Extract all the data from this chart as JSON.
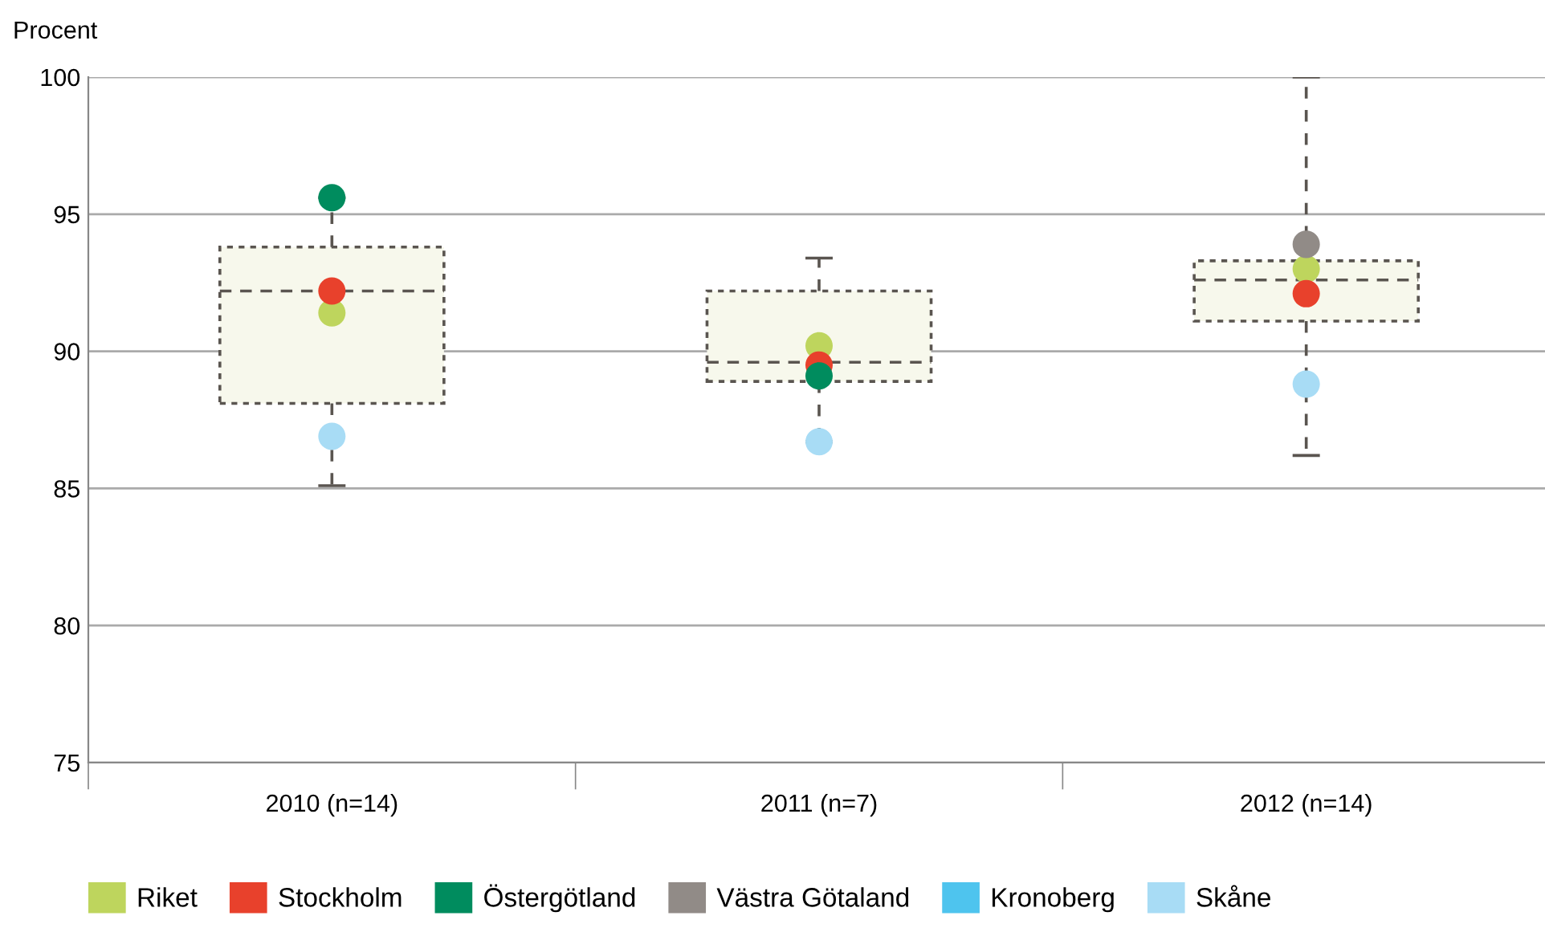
{
  "chart_data": {
    "type": "box",
    "ylabel": "Procent",
    "categories": [
      "2010 (n=14)",
      "2011 (n=7)",
      "2012 (n=14)"
    ],
    "boxes": [
      {
        "low": 85.1,
        "q1": 88.1,
        "median": 92.2,
        "q3": 93.8,
        "high": 95.6
      },
      {
        "low": 86.7,
        "q1": 88.9,
        "median": 89.6,
        "q3": 92.2,
        "high": 93.4
      },
      {
        "low": 86.2,
        "q1": 91.1,
        "median": 92.6,
        "q3": 93.3,
        "high": 100
      }
    ],
    "series": [
      {
        "type": "scatter",
        "name": "Riket",
        "color": "#bed55d",
        "x": [
          "2010 (n=14)",
          "2011 (n=7)",
          "2012 (n=14)"
        ],
        "values": [
          91.4,
          90.2,
          93.0
        ]
      },
      {
        "type": "scatter",
        "name": "Stockholm",
        "color": "#e8412c",
        "x": [
          "2010 (n=14)",
          "2011 (n=7)",
          "2012 (n=14)"
        ],
        "values": [
          92.2,
          89.5,
          92.1
        ]
      },
      {
        "type": "scatter",
        "name": "Östergötland",
        "color": "#008c5e",
        "x": [
          "2010 (n=14)",
          "2011 (n=7)",
          "2012 (n=14)"
        ],
        "values": [
          95.6,
          89.1,
          null
        ]
      },
      {
        "type": "scatter",
        "name": "Västra Götaland",
        "color": "#918b87",
        "x": [
          "2010 (n=14)",
          "2011 (n=7)",
          "2012 (n=14)"
        ],
        "values": [
          null,
          null,
          93.9
        ]
      },
      {
        "type": "scatter",
        "name": "Kronoberg",
        "color": "#4ec4ee",
        "x": [
          "2010 (n=14)",
          "2011 (n=7)",
          "2012 (n=14)"
        ],
        "values": [
          null,
          null,
          null
        ]
      },
      {
        "type": "scatter",
        "name": "Skåne",
        "color": "#a8dcf5",
        "x": [
          "2010 (n=14)",
          "2011 (n=7)",
          "2012 (n=14)"
        ],
        "values": [
          86.9,
          86.7,
          88.8
        ]
      }
    ],
    "ylim": [
      75,
      100
    ],
    "yticks": [
      75,
      80,
      85,
      90,
      95,
      100
    ],
    "grid": "y",
    "legend": "bottom",
    "marker": "circle"
  }
}
